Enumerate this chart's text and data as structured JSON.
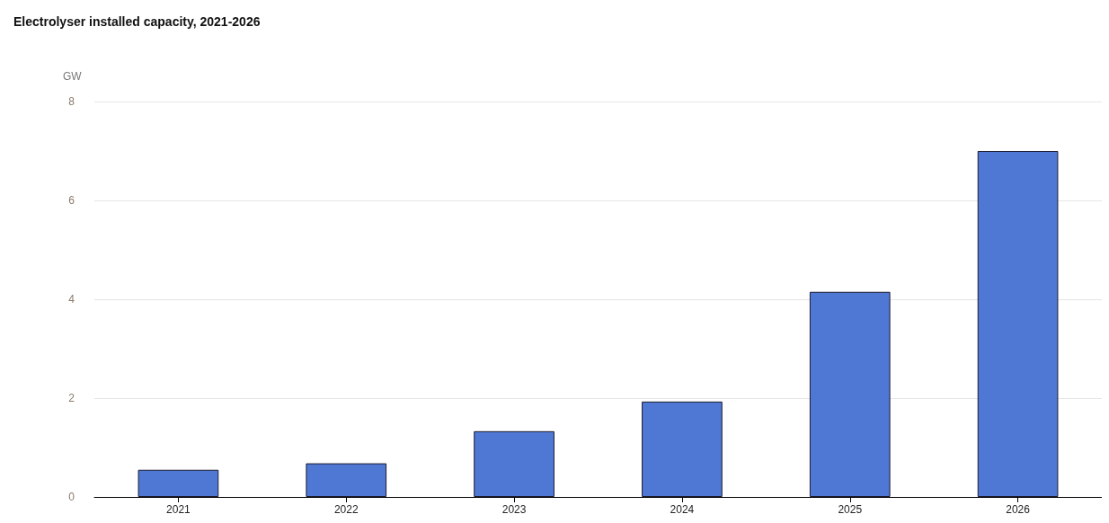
{
  "chart_data": {
    "type": "bar",
    "title": "Electrolyser installed capacity, 2021-2026",
    "ylabel": "GW",
    "categories": [
      "2021",
      "2022",
      "2023",
      "2024",
      "2025",
      "2026"
    ],
    "values": [
      0.55,
      0.68,
      1.33,
      1.93,
      4.15,
      7.0
    ],
    "color": "#4f78d4",
    "ylim": [
      0,
      8
    ],
    "yticks": [
      0,
      2,
      4,
      6,
      8
    ],
    "grid": "y"
  }
}
